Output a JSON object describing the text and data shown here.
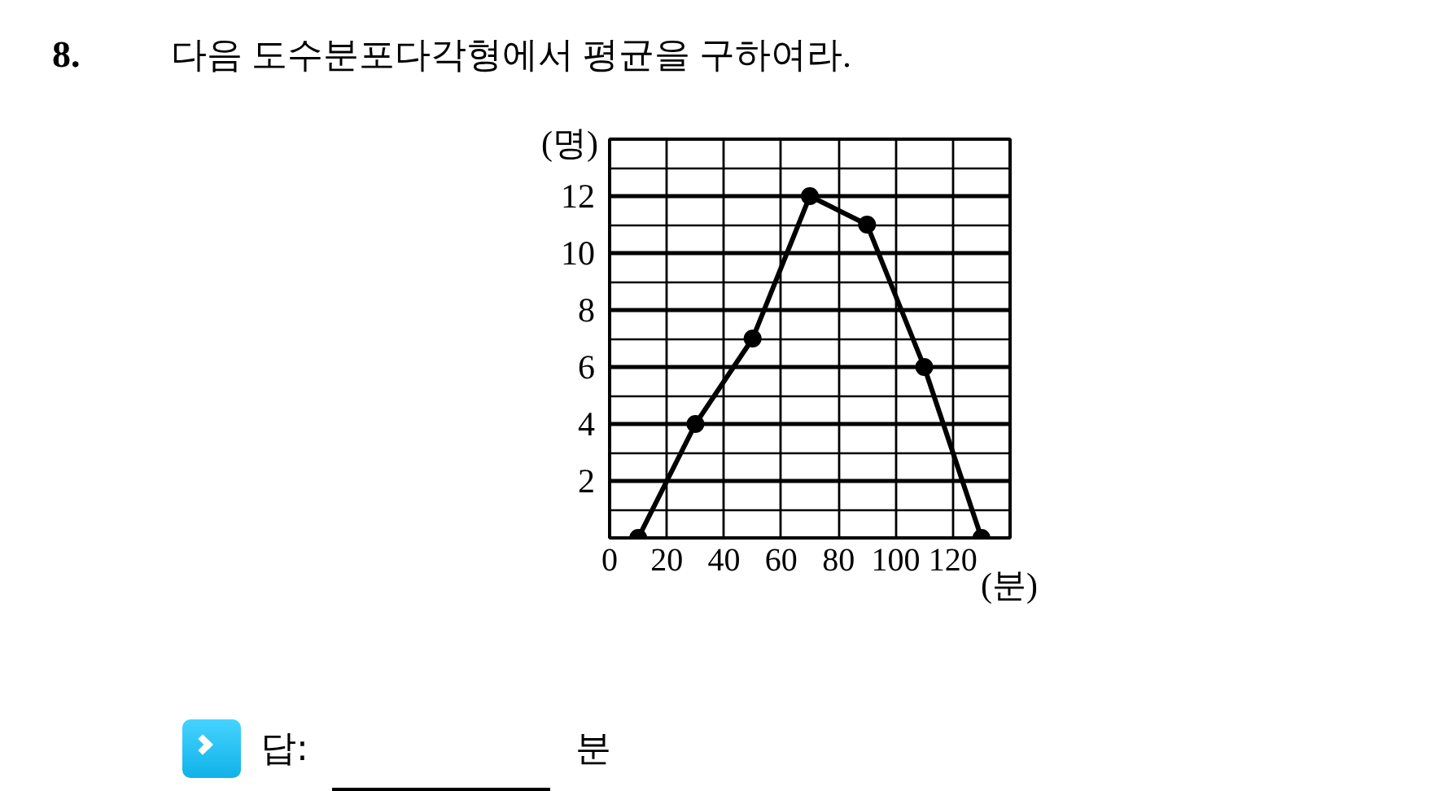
{
  "chart_data": {
    "type": "line",
    "title": "8. 다음 도수분포다각형에서 평균을 구하여라.",
    "xlabel": "(분)",
    "ylabel": "(명)",
    "x": [
      10,
      30,
      50,
      70,
      90,
      110,
      130
    ],
    "values": [
      0,
      4,
      7,
      12,
      11,
      6,
      0
    ],
    "color": "#000000",
    "xlim": [
      0,
      140
    ],
    "ylim": [
      0,
      14
    ],
    "xticks": [
      0,
      20,
      40,
      60,
      80,
      100,
      120,
      {
        "value": 140,
        "label": null
      }
    ],
    "yticks": [
      {
        "value": 0,
        "label": null
      },
      {
        "value": 1,
        "label": null
      },
      2,
      {
        "value": 3,
        "label": null
      },
      4,
      {
        "value": 5,
        "label": null
      },
      6,
      {
        "value": 7,
        "label": null
      },
      8,
      {
        "value": 9,
        "label": null
      },
      10,
      {
        "value": 11,
        "label": null
      },
      12,
      {
        "value": 13,
        "label": null
      },
      {
        "value": 14,
        "label": null
      }
    ],
    "grid": true,
    "marker": "circle",
    "line_style": "solid",
    "annotations": [
      "답:",
      "분"
    ]
  }
}
